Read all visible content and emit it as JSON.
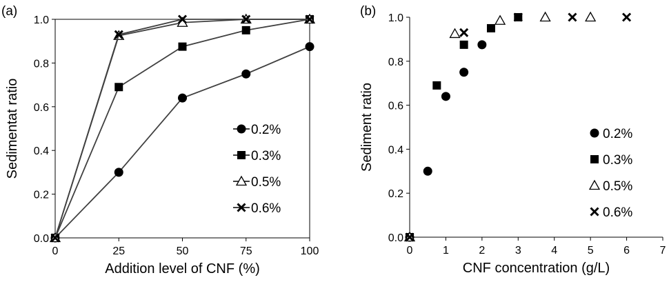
{
  "colors": {
    "ink": "#000000",
    "series_line": "#404040",
    "background": "#ffffff"
  },
  "chart_data": [
    {
      "panel_label": "(a)",
      "type": "line",
      "xlabel": "Addition level of CNF (%)",
      "ylabel": "Sedimentat ratio",
      "x": [
        0,
        25,
        50,
        75,
        100
      ],
      "xlim": [
        0,
        100
      ],
      "ylim": [
        0,
        1.0
      ],
      "xticks": [
        0,
        25,
        50,
        75,
        100
      ],
      "xtick_labels": [
        "0",
        "25",
        "50",
        "75",
        "100"
      ],
      "yticks": [
        0,
        0.2,
        0.4,
        0.6,
        0.8,
        1.0
      ],
      "ytick_labels": [
        "0.0",
        "0.2",
        "0.4",
        "0.6",
        "0.8",
        "1.0"
      ],
      "legend_position": "bottom-right",
      "series": [
        {
          "name": "0.2%",
          "marker": "circle",
          "values": [
            0,
            0.3,
            0.64,
            0.75,
            0.875
          ]
        },
        {
          "name": "0.3%",
          "marker": "square",
          "values": [
            0,
            0.69,
            0.875,
            0.95,
            1.0
          ]
        },
        {
          "name": "0.5%",
          "marker": "triangle-open",
          "values": [
            0,
            0.925,
            0.985,
            1.0,
            1.0
          ]
        },
        {
          "name": "0.6%",
          "marker": "x",
          "values": [
            0,
            0.93,
            1.0,
            1.0,
            1.0
          ]
        }
      ]
    },
    {
      "panel_label": "(b)",
      "type": "scatter",
      "xlabel": "CNF concentration (g/L)",
      "ylabel": "Sediment ratio",
      "xlim": [
        0,
        7
      ],
      "ylim": [
        0,
        1.0
      ],
      "xticks": [
        0,
        1,
        2,
        3,
        4,
        5,
        6,
        7
      ],
      "xtick_labels": [
        "0",
        "1",
        "2",
        "3",
        "4",
        "5",
        "6",
        "7"
      ],
      "yticks": [
        0,
        0.2,
        0.4,
        0.6,
        0.8,
        1.0
      ],
      "ytick_labels": [
        "0.0",
        "0.2",
        "0.4",
        "0.6",
        "0.8",
        "1.0"
      ],
      "legend_position": "bottom-right",
      "series": [
        {
          "name": "0.2%",
          "marker": "circle",
          "x": [
            0,
            0.5,
            1.0,
            1.5,
            2.0
          ],
          "y": [
            0,
            0.3,
            0.64,
            0.75,
            0.875
          ]
        },
        {
          "name": "0.3%",
          "marker": "square",
          "x": [
            0,
            0.75,
            1.5,
            2.25,
            3.0
          ],
          "y": [
            0,
            0.69,
            0.875,
            0.95,
            1.0
          ]
        },
        {
          "name": "0.5%",
          "marker": "triangle-open",
          "x": [
            0,
            1.25,
            2.5,
            3.75,
            5.0
          ],
          "y": [
            0,
            0.925,
            0.985,
            1.0,
            1.0
          ]
        },
        {
          "name": "0.6%",
          "marker": "x",
          "x": [
            0,
            1.5,
            3.0,
            4.5,
            6.0
          ],
          "y": [
            0,
            0.93,
            1.0,
            1.0,
            1.0
          ]
        }
      ]
    }
  ]
}
